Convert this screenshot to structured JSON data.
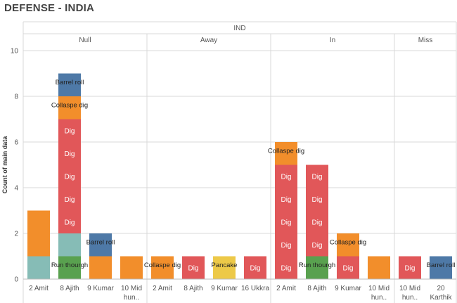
{
  "title": "DEFENSE - INDIA",
  "colors": {
    "Barrel roll": "#4e79a7",
    "Collaspe dig": "#f28e2b",
    "Dig": "#e15759",
    "Run thourgh": "#59a14f",
    "Pancake": "#edc948",
    "Teal": "#86bcb6",
    "grid": "#d9d9d9",
    "text": "#555555"
  },
  "chart_data": {
    "type": "bar",
    "stacked": true,
    "top_header": "IND",
    "ylabel": "Count of main data",
    "ylim": [
      0,
      10
    ],
    "yticks": [
      0,
      2,
      4,
      6,
      8,
      10
    ],
    "groups": [
      {
        "name": "Null",
        "categories": [
          {
            "label": [
              "2 Amit"
            ],
            "segments": [
              {
                "color": "Teal",
                "value": 1,
                "label": ""
              },
              {
                "color": "Collaspe dig",
                "value": 2,
                "label": ""
              }
            ]
          },
          {
            "label": [
              "8 Ajith"
            ],
            "segments": [
              {
                "color": "Run thourgh",
                "value": 1,
                "label": "Run thourgh"
              },
              {
                "color": "Teal",
                "value": 1,
                "label": ""
              },
              {
                "color": "Dig",
                "value": 1,
                "label": "Dig"
              },
              {
                "color": "Dig",
                "value": 1,
                "label": "Dig"
              },
              {
                "color": "Dig",
                "value": 1,
                "label": "Dig"
              },
              {
                "color": "Dig",
                "value": 1,
                "label": "Dig"
              },
              {
                "color": "Dig",
                "value": 1,
                "label": "Dig"
              },
              {
                "color": "Collaspe dig",
                "value": 1,
                "label": "Collaspe dig"
              },
              {
                "color": "Barrel roll",
                "value": 1,
                "label": "Barrel roll"
              }
            ]
          },
          {
            "label": [
              "9 Kumar"
            ],
            "segments": [
              {
                "color": "Collaspe dig",
                "value": 1,
                "label": ""
              },
              {
                "color": "Barrel roll",
                "value": 1,
                "label": "Barrel roll"
              }
            ]
          },
          {
            "label": [
              "10 Mid",
              "hun.."
            ],
            "segments": [
              {
                "color": "Collaspe dig",
                "value": 1,
                "label": ""
              }
            ]
          }
        ]
      },
      {
        "name": "Away",
        "categories": [
          {
            "label": [
              "2 Amit"
            ],
            "segments": [
              {
                "color": "Collaspe dig",
                "value": 1,
                "label": "Collaspe dig"
              }
            ]
          },
          {
            "label": [
              "8 Ajith"
            ],
            "segments": [
              {
                "color": "Dig",
                "value": 1,
                "label": "Dig"
              }
            ]
          },
          {
            "label": [
              "9 Kumar"
            ],
            "segments": [
              {
                "color": "Pancake",
                "value": 1,
                "label": "Pancake"
              }
            ]
          },
          {
            "label": [
              "16 Ukkra"
            ],
            "segments": [
              {
                "color": "Dig",
                "value": 1,
                "label": "Dig"
              }
            ]
          }
        ]
      },
      {
        "name": "In",
        "categories": [
          {
            "label": [
              "2 Amit"
            ],
            "segments": [
              {
                "color": "Dig",
                "value": 1,
                "label": "Dig"
              },
              {
                "color": "Dig",
                "value": 1,
                "label": "Dig"
              },
              {
                "color": "Dig",
                "value": 1,
                "label": "Dig"
              },
              {
                "color": "Dig",
                "value": 1,
                "label": "Dig"
              },
              {
                "color": "Dig",
                "value": 1,
                "label": "Dig"
              },
              {
                "color": "Collaspe dig",
                "value": 1,
                "label": "Collaspe dig"
              }
            ]
          },
          {
            "label": [
              "8 Ajith"
            ],
            "segments": [
              {
                "color": "Run thourgh",
                "value": 1,
                "label": "Run thourgh"
              },
              {
                "color": "Dig",
                "value": 1,
                "label": "Dig"
              },
              {
                "color": "Dig",
                "value": 1,
                "label": "Dig"
              },
              {
                "color": "Dig",
                "value": 1,
                "label": "Dig"
              },
              {
                "color": "Dig",
                "value": 1,
                "label": "Dig"
              }
            ]
          },
          {
            "label": [
              "9 Kumar"
            ],
            "segments": [
              {
                "color": "Dig",
                "value": 1,
                "label": "Dig"
              },
              {
                "color": "Collaspe dig",
                "value": 1,
                "label": "Collaspe dig"
              }
            ]
          },
          {
            "label": [
              "10 Mid",
              "hun.."
            ],
            "segments": [
              {
                "color": "Collaspe dig",
                "value": 1,
                "label": ""
              }
            ]
          }
        ]
      },
      {
        "name": "Miss",
        "categories": [
          {
            "label": [
              "10 Mid",
              "hun.."
            ],
            "segments": [
              {
                "color": "Dig",
                "value": 1,
                "label": "Dig"
              }
            ]
          },
          {
            "label": [
              "20",
              "Karthik"
            ],
            "segments": [
              {
                "color": "Barrel roll",
                "value": 1,
                "label": "Barrel roll"
              }
            ]
          }
        ]
      }
    ]
  }
}
